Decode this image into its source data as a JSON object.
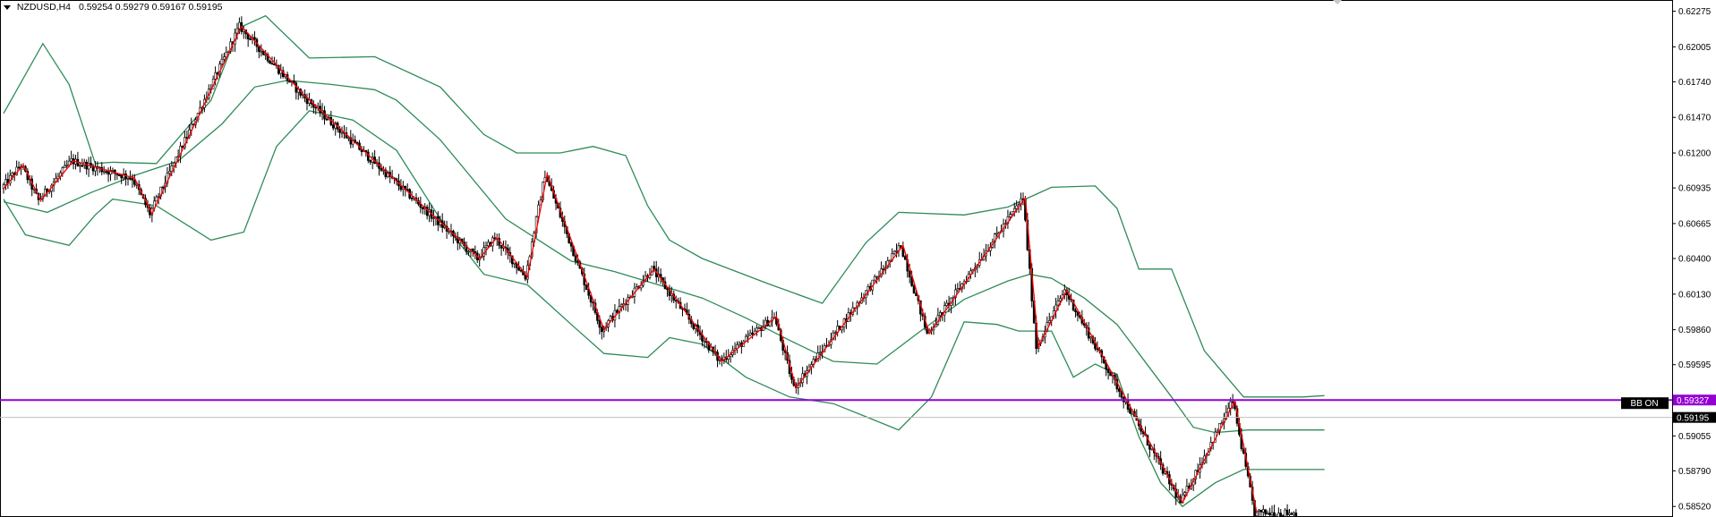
{
  "header": {
    "symbol": "NZDUSD,H4",
    "ohlc": "0.59254 0.59279 0.59167 0.59195"
  },
  "colors": {
    "up_candle": "#ffffff",
    "down_candle": "#000000",
    "bollinger": "#2e8b57",
    "zigzag": "#ff0000",
    "level_line": "#9400d3",
    "price_line": "#c0c0c0",
    "grid_border": "#000000"
  },
  "chart_data": {
    "type": "candlestick",
    "symbol": "NZDUSD",
    "timeframe": "H4",
    "ylim": [
      0.5844,
      0.6236
    ],
    "y_ticks": [
      "0.62275",
      "0.62005",
      "0.61740",
      "0.61470",
      "0.61200",
      "0.60935",
      "0.60665",
      "0.60400",
      "0.60130",
      "0.59860",
      "0.59595",
      "0.59055",
      "0.58790",
      "0.58520"
    ],
    "current_price": "0.59195",
    "horizontal_level": {
      "value": "0.59327",
      "label": "BB ON"
    },
    "zigzag_points": [
      [
        0,
        0.6093
      ],
      [
        9,
        0.6111
      ],
      [
        17,
        0.6084
      ],
      [
        32,
        0.6114
      ],
      [
        60,
        0.6101
      ],
      [
        68,
        0.6074
      ],
      [
        109,
        0.6216
      ],
      [
        137,
        0.6165
      ],
      [
        218,
        0.604
      ],
      [
        226,
        0.6056
      ],
      [
        240,
        0.6026
      ],
      [
        249,
        0.6104
      ],
      [
        275,
        0.5986
      ],
      [
        298,
        0.6032
      ],
      [
        329,
        0.5962
      ],
      [
        354,
        0.5996
      ],
      [
        363,
        0.5942
      ],
      [
        412,
        0.605
      ],
      [
        424,
        0.5983
      ],
      [
        468,
        0.6086
      ],
      [
        474,
        0.5973
      ],
      [
        487,
        0.6016
      ],
      [
        540,
        0.5855
      ],
      [
        564,
        0.5932
      ],
      [
        574,
        0.5847
      ]
    ],
    "bollinger_upper": [
      [
        0,
        0.615
      ],
      [
        18,
        0.6203
      ],
      [
        30,
        0.6172
      ],
      [
        42,
        0.6112
      ],
      [
        50,
        0.6113
      ],
      [
        70,
        0.6112
      ],
      [
        95,
        0.616
      ],
      [
        108,
        0.6215
      ],
      [
        120,
        0.6224
      ],
      [
        140,
        0.6192
      ],
      [
        170,
        0.6193
      ],
      [
        200,
        0.617
      ],
      [
        220,
        0.6134
      ],
      [
        235,
        0.612
      ],
      [
        255,
        0.612
      ],
      [
        270,
        0.6125
      ],
      [
        285,
        0.6118
      ],
      [
        295,
        0.608
      ],
      [
        305,
        0.6054
      ],
      [
        320,
        0.604
      ],
      [
        350,
        0.6021
      ],
      [
        375,
        0.6006
      ],
      [
        395,
        0.6052
      ],
      [
        410,
        0.6075
      ],
      [
        440,
        0.6073
      ],
      [
        460,
        0.6079
      ],
      [
        480,
        0.6094
      ],
      [
        500,
        0.6095
      ],
      [
        510,
        0.6078
      ],
      [
        520,
        0.6032
      ],
      [
        535,
        0.6032
      ],
      [
        550,
        0.597
      ],
      [
        568,
        0.5935
      ],
      [
        595,
        0.5935
      ],
      [
        605,
        0.5936
      ]
    ],
    "bollinger_middle": [
      [
        0,
        0.6083
      ],
      [
        20,
        0.6075
      ],
      [
        40,
        0.609
      ],
      [
        60,
        0.6103
      ],
      [
        80,
        0.6114
      ],
      [
        100,
        0.6142
      ],
      [
        115,
        0.617
      ],
      [
        130,
        0.6175
      ],
      [
        150,
        0.6172
      ],
      [
        170,
        0.6168
      ],
      [
        180,
        0.616
      ],
      [
        200,
        0.613
      ],
      [
        230,
        0.607
      ],
      [
        260,
        0.6038
      ],
      [
        280,
        0.603
      ],
      [
        300,
        0.602
      ],
      [
        320,
        0.601
      ],
      [
        340,
        0.5995
      ],
      [
        360,
        0.5978
      ],
      [
        380,
        0.5962
      ],
      [
        400,
        0.596
      ],
      [
        420,
        0.5985
      ],
      [
        440,
        0.6009
      ],
      [
        460,
        0.6023
      ],
      [
        470,
        0.6028
      ],
      [
        480,
        0.6025
      ],
      [
        495,
        0.601
      ],
      [
        510,
        0.599
      ],
      [
        520,
        0.5968
      ],
      [
        535,
        0.5935
      ],
      [
        545,
        0.5912
      ],
      [
        555,
        0.5908
      ],
      [
        570,
        0.591
      ],
      [
        585,
        0.591
      ],
      [
        605,
        0.591
      ]
    ],
    "bollinger_lower": [
      [
        0,
        0.6085
      ],
      [
        10,
        0.6058
      ],
      [
        30,
        0.605
      ],
      [
        42,
        0.6073
      ],
      [
        50,
        0.6085
      ],
      [
        70,
        0.608
      ],
      [
        95,
        0.6054
      ],
      [
        110,
        0.606
      ],
      [
        125,
        0.6125
      ],
      [
        140,
        0.6152
      ],
      [
        160,
        0.6145
      ],
      [
        180,
        0.6122
      ],
      [
        200,
        0.607
      ],
      [
        220,
        0.6028
      ],
      [
        240,
        0.602
      ],
      [
        260,
        0.599
      ],
      [
        275,
        0.5968
      ],
      [
        295,
        0.5965
      ],
      [
        305,
        0.598
      ],
      [
        320,
        0.5975
      ],
      [
        340,
        0.595
      ],
      [
        360,
        0.5935
      ],
      [
        380,
        0.593
      ],
      [
        395,
        0.592
      ],
      [
        410,
        0.591
      ],
      [
        425,
        0.5935
      ],
      [
        440,
        0.5992
      ],
      [
        455,
        0.599
      ],
      [
        465,
        0.5985
      ],
      [
        480,
        0.5985
      ],
      [
        490,
        0.595
      ],
      [
        500,
        0.596
      ],
      [
        510,
        0.5952
      ],
      [
        520,
        0.5905
      ],
      [
        530,
        0.587
      ],
      [
        540,
        0.5852
      ],
      [
        555,
        0.587
      ],
      [
        568,
        0.588
      ],
      [
        585,
        0.588
      ],
      [
        605,
        0.588
      ]
    ]
  }
}
